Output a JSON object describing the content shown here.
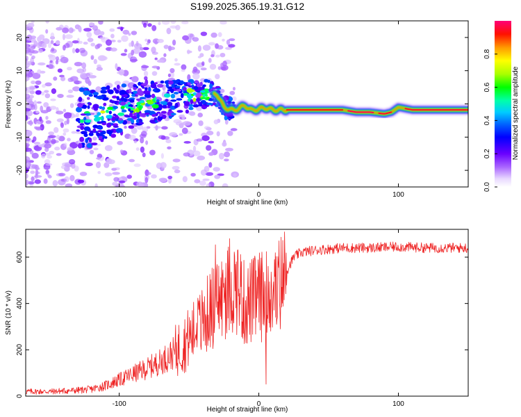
{
  "title": "S199.2025.365.19.31.G12",
  "colors": {
    "snr_line": "#ee2222",
    "frame": "#000000",
    "background": "#ffffff"
  },
  "chart_data": [
    {
      "type": "heatmap",
      "name": "spectrogram",
      "xlabel": "Height of straight line (km)",
      "ylabel": "Frequency (Hz)",
      "xlim": [
        -167,
        150
      ],
      "ylim": [
        -25,
        25
      ],
      "xticks": [
        -100,
        0,
        100
      ],
      "xtick_labels": [
        "-100",
        "0",
        "100"
      ],
      "yticks": [
        -20,
        -10,
        0,
        10,
        20
      ],
      "ytick_labels": [
        "-20",
        "-10",
        "0",
        "10",
        "20"
      ],
      "grid": false,
      "ridge": {
        "description": "dominant frequency track vs height",
        "x": [
          -120,
          -100,
          -80,
          -60,
          -40,
          -30,
          -25,
          -18,
          -10,
          -5,
          0,
          5,
          10,
          20,
          40,
          60,
          70,
          80,
          90,
          95,
          100,
          110,
          130,
          150
        ],
        "freq": [
          -4,
          -2,
          0,
          2,
          3,
          3,
          -1,
          -2,
          -0.5,
          -2,
          -1.5,
          -1.2,
          -1.8,
          -1.8,
          -1.8,
          -1.8,
          -2.5,
          -2.5,
          -3,
          -2.5,
          -1,
          -1.8,
          -1.8,
          -1.8
        ],
        "amplitude": [
          0.25,
          0.4,
          0.5,
          0.55,
          0.6,
          0.7,
          0.5,
          0.55,
          0.5,
          0.6,
          0.65,
          0.7,
          0.75,
          0.9,
          0.92,
          0.93,
          0.95,
          0.93,
          0.85,
          0.85,
          0.8,
          0.93,
          0.95,
          0.95
        ]
      },
      "colorbar": {
        "label": "Normalized spectral amplitude",
        "range": [
          0.0,
          1.0
        ],
        "ticks": [
          0.0,
          0.2,
          0.4,
          0.6,
          0.8
        ],
        "tick_labels": [
          "0.0",
          "0.2",
          "0.4",
          "0.6",
          "0.8"
        ]
      }
    },
    {
      "type": "line",
      "name": "snr",
      "xlabel": "Height of straight line (km)",
      "ylabel": "SNR (10 * v/v)",
      "xlim": [
        -167,
        150
      ],
      "ylim": [
        0,
        720
      ],
      "xticks": [
        -100,
        0,
        100
      ],
      "xtick_labels": [
        "-100",
        "0",
        "100"
      ],
      "yticks": [
        0,
        200,
        400,
        600
      ],
      "ytick_labels": [
        "0",
        "200",
        "400",
        "600"
      ],
      "grid": false,
      "series": [
        {
          "name": "SNR",
          "x": [
            -167,
            -150,
            -130,
            -120,
            -110,
            -100,
            -90,
            -80,
            -70,
            -60,
            -50,
            -40,
            -35,
            -30,
            -25,
            -20,
            -15,
            -10,
            -5,
            0,
            5,
            10,
            15,
            20,
            25,
            30,
            40,
            50,
            60,
            80,
            100,
            120,
            150
          ],
          "values": [
            20,
            20,
            25,
            30,
            45,
            70,
            95,
            120,
            150,
            190,
            250,
            320,
            370,
            410,
            430,
            470,
            480,
            390,
            410,
            430,
            430,
            450,
            480,
            540,
            600,
            620,
            630,
            635,
            640,
            640,
            645,
            640,
            640
          ]
        }
      ]
    }
  ]
}
